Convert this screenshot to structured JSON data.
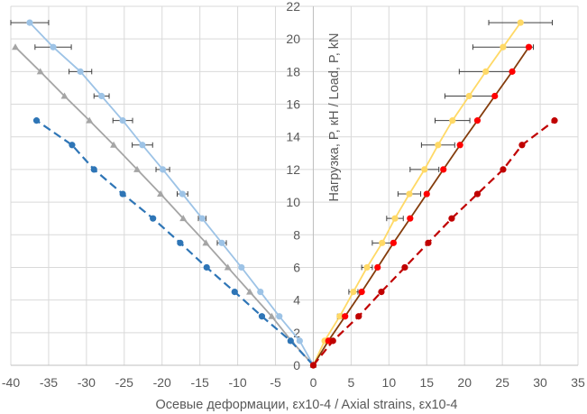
{
  "chart_data": {
    "type": "line",
    "title": "",
    "xlabel": "Осевые деформации, εx10-4 / Axial strains, εx10-4",
    "ylabel": "Нагрузка, P, кН / Load, P, kN",
    "xlim": [
      -40,
      35
    ],
    "ylim": [
      0,
      22
    ],
    "xticks": [
      -40,
      -35,
      -30,
      -25,
      -20,
      -15,
      -10,
      -5,
      0,
      5,
      10,
      15,
      20,
      25,
      30,
      35
    ],
    "yticks": [
      0,
      2,
      4,
      6,
      8,
      10,
      12,
      14,
      16,
      18,
      20,
      22
    ],
    "grid": true,
    "legend": "none",
    "series": [
      {
        "color": "#9dc3e6",
        "marker": "circle",
        "dash": false,
        "x": [
          0,
          -1.8,
          -4.5,
          -7.0,
          -9.5,
          -12.1,
          -14.7,
          -17.3,
          -19.9,
          -22.6,
          -25.2,
          -28.0,
          -30.8,
          -34.4,
          -37.5
        ],
        "y": [
          0,
          1.5,
          3,
          4.5,
          6,
          7.5,
          9,
          10.5,
          12,
          13.5,
          15,
          16.5,
          18,
          19.5,
          21
        ],
        "xerr": [
          0,
          0,
          0,
          0,
          0,
          0.6,
          0.5,
          0.7,
          0.9,
          1.35,
          1.3,
          1.0,
          1.5,
          2.4,
          2.5
        ]
      },
      {
        "color": "#a5a5a5",
        "marker": "triangle",
        "dash": false,
        "x": [
          0,
          -2.9,
          -5.5,
          -8.4,
          -11.3,
          -14.2,
          -17.2,
          -20.2,
          -23.3,
          -26.4,
          -29.6,
          -32.9,
          -36.1,
          -39.4
        ],
        "y": [
          0,
          1.5,
          3,
          4.5,
          6,
          7.5,
          9,
          10.5,
          12,
          13.5,
          15,
          16.5,
          18,
          19.5
        ]
      },
      {
        "color": "#2e75b6",
        "marker": "circle",
        "dash": true,
        "x": [
          0,
          -3.0,
          -6.8,
          -10.4,
          -14.1,
          -17.6,
          -21.2,
          -25.2,
          -29.0,
          -31.9,
          -36.6
        ],
        "y": [
          0,
          1.5,
          3,
          4.5,
          6,
          7.5,
          9,
          10.5,
          12,
          13.5,
          15
        ]
      },
      {
        "color": "#ffd966",
        "marker": "circle",
        "dash": false,
        "x": [
          0,
          1.5,
          3.5,
          5.3,
          7.1,
          9.1,
          10.8,
          12.7,
          14.7,
          16.5,
          18.4,
          20.6,
          22.8,
          25.1,
          27.4
        ],
        "y": [
          0,
          1.5,
          3,
          4.5,
          6,
          7.5,
          9,
          10.5,
          12,
          13.5,
          15,
          16.5,
          18,
          19.5,
          21
        ],
        "xerr": [
          0,
          0,
          0.3,
          0.6,
          0.7,
          1.3,
          1.1,
          1.5,
          1.9,
          2.2,
          2.3,
          3.2,
          3.5,
          4.0,
          4.2
        ]
      },
      {
        "color": "#843c0c",
        "marker_color": "#ff0000",
        "marker": "circle",
        "dash": false,
        "x": [
          0,
          2.0,
          4.2,
          6.4,
          8.5,
          10.6,
          12.8,
          15.0,
          17.2,
          19.4,
          21.7,
          24.0,
          26.3,
          28.5
        ],
        "y": [
          0,
          1.5,
          3,
          4.5,
          6,
          7.5,
          9,
          10.5,
          12,
          13.5,
          15,
          16.5,
          18,
          19.5
        ]
      },
      {
        "color": "#c00000",
        "marker": "circle",
        "dash": true,
        "x": [
          0,
          2.6,
          6.0,
          9.0,
          12.1,
          15.2,
          18.3,
          21.7,
          25.1,
          27.6,
          31.9
        ],
        "y": [
          0,
          1.5,
          3,
          4.5,
          6,
          7.5,
          9,
          10.5,
          12,
          13.5,
          15
        ]
      }
    ]
  }
}
